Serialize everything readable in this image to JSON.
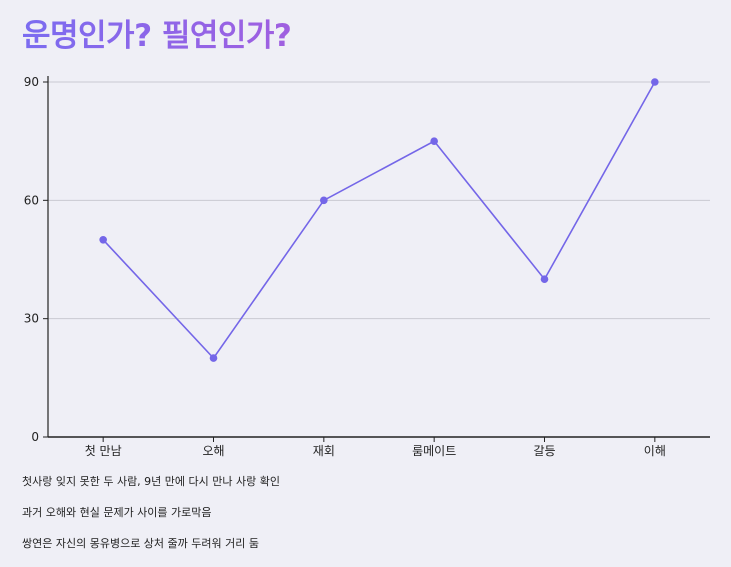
{
  "title": "운명인가? 필연인가?",
  "chart_data": {
    "type": "line",
    "categories": [
      "첫 만남",
      "오해",
      "재회",
      "룸메이트",
      "갈등",
      "이해"
    ],
    "values": [
      50,
      20,
      60,
      75,
      40,
      90
    ],
    "title": "운명인가? 필연인가?",
    "xlabel": "",
    "ylabel": "",
    "ylim": [
      0,
      90
    ],
    "yticks": [
      0,
      30,
      60,
      90
    ],
    "grid": true,
    "color": "#7466e8"
  },
  "notes": [
    "첫사랑 잊지 못한 두 사람, 9년 만에 다시 만나 사랑 확인",
    "과거 오해와 현실 문제가 사이를 가로막음",
    "쌍연은 자신의 몽유병으로 상처 줄까 두려워 거리 둠"
  ]
}
